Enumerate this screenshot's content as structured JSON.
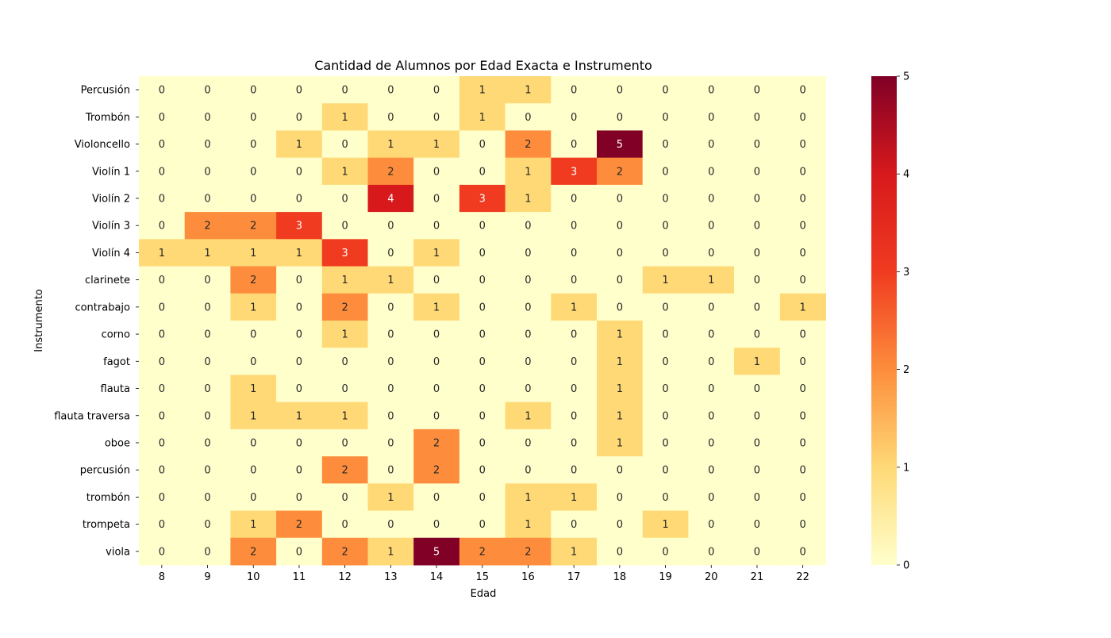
{
  "chart_data": {
    "type": "heatmap",
    "title": "Cantidad de Alumnos por Edad Exacta e Instrumento",
    "xlabel": "Edad",
    "ylabel": "Instrumento",
    "x": [
      "8",
      "9",
      "10",
      "11",
      "12",
      "13",
      "14",
      "15",
      "16",
      "17",
      "18",
      "19",
      "20",
      "21",
      "22"
    ],
    "y": [
      "Percusión",
      "Trombón",
      "Violoncello",
      "Violín 1",
      "Violín 2",
      "Violín 3",
      "Violín 4",
      "clarinete",
      "contrabajo",
      "corno",
      "fagot",
      "flauta",
      "flauta traversa",
      "oboe",
      "percusión",
      "trombón",
      "trompeta",
      "viola"
    ],
    "values": [
      [
        0,
        0,
        0,
        0,
        0,
        0,
        0,
        1,
        1,
        0,
        0,
        0,
        0,
        0,
        0
      ],
      [
        0,
        0,
        0,
        0,
        1,
        0,
        0,
        1,
        0,
        0,
        0,
        0,
        0,
        0,
        0
      ],
      [
        0,
        0,
        0,
        1,
        0,
        1,
        1,
        0,
        2,
        0,
        5,
        0,
        0,
        0,
        0
      ],
      [
        0,
        0,
        0,
        0,
        1,
        2,
        0,
        0,
        1,
        3,
        2,
        0,
        0,
        0,
        0
      ],
      [
        0,
        0,
        0,
        0,
        0,
        4,
        0,
        3,
        1,
        0,
        0,
        0,
        0,
        0,
        0
      ],
      [
        0,
        2,
        2,
        3,
        0,
        0,
        0,
        0,
        0,
        0,
        0,
        0,
        0,
        0,
        0
      ],
      [
        1,
        1,
        1,
        1,
        3,
        0,
        1,
        0,
        0,
        0,
        0,
        0,
        0,
        0,
        0
      ],
      [
        0,
        0,
        2,
        0,
        1,
        1,
        0,
        0,
        0,
        0,
        0,
        1,
        1,
        0,
        0
      ],
      [
        0,
        0,
        1,
        0,
        2,
        0,
        1,
        0,
        0,
        1,
        0,
        0,
        0,
        0,
        1
      ],
      [
        0,
        0,
        0,
        0,
        1,
        0,
        0,
        0,
        0,
        0,
        1,
        0,
        0,
        0,
        0
      ],
      [
        0,
        0,
        0,
        0,
        0,
        0,
        0,
        0,
        0,
        0,
        1,
        0,
        0,
        1,
        0
      ],
      [
        0,
        0,
        1,
        0,
        0,
        0,
        0,
        0,
        0,
        0,
        1,
        0,
        0,
        0,
        0
      ],
      [
        0,
        0,
        1,
        1,
        1,
        0,
        0,
        0,
        1,
        0,
        1,
        0,
        0,
        0,
        0
      ],
      [
        0,
        0,
        0,
        0,
        0,
        0,
        2,
        0,
        0,
        0,
        1,
        0,
        0,
        0,
        0
      ],
      [
        0,
        0,
        0,
        0,
        2,
        0,
        2,
        0,
        0,
        0,
        0,
        0,
        0,
        0,
        0
      ],
      [
        0,
        0,
        0,
        0,
        0,
        1,
        0,
        0,
        1,
        1,
        0,
        0,
        0,
        0,
        0
      ],
      [
        0,
        0,
        1,
        2,
        0,
        0,
        0,
        0,
        1,
        0,
        0,
        1,
        0,
        0,
        0
      ],
      [
        0,
        0,
        2,
        0,
        2,
        1,
        5,
        2,
        2,
        1,
        0,
        0,
        0,
        0,
        0
      ]
    ],
    "colorbar": {
      "min": 0,
      "max": 5,
      "ticks": [
        "0",
        "1",
        "2",
        "3",
        "4",
        "5"
      ],
      "colormap": "YlOrRd"
    },
    "colors": [
      "#ffffcc",
      "#fed976",
      "#fd8d3c",
      "#f03b20",
      "#d7191c",
      "#800026"
    ]
  }
}
